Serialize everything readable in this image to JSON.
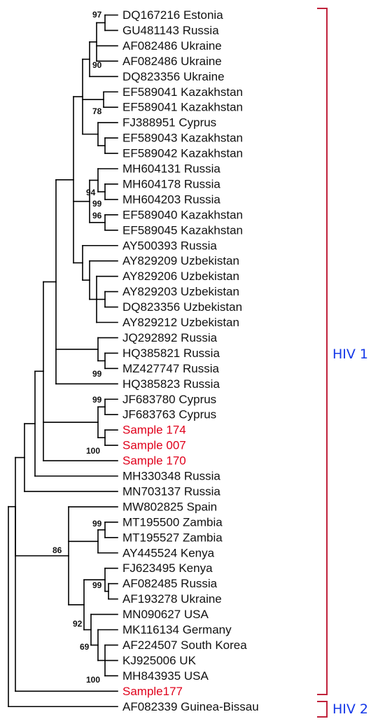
{
  "leaves": [
    {
      "text": "DQ167216 Estonia",
      "color": "#111111"
    },
    {
      "text": "GU481143 Russia",
      "color": "#111111"
    },
    {
      "text": "AF082486 Ukraine",
      "color": "#111111"
    },
    {
      "text": "AF082486 Ukraine",
      "color": "#111111"
    },
    {
      "text": "DQ823356 Ukraine",
      "color": "#111111"
    },
    {
      "text": "EF589041 Kazakhstan",
      "color": "#111111"
    },
    {
      "text": "EF589041 Kazakhstan",
      "color": "#111111"
    },
    {
      "text": "FJ388951 Cyprus",
      "color": "#111111"
    },
    {
      "text": "EF589043 Kazakhstan",
      "color": "#111111"
    },
    {
      "text": "EF589042 Kazakhstan",
      "color": "#111111"
    },
    {
      "text": "MH604131 Russia",
      "color": "#111111"
    },
    {
      "text": "MH604178 Russia",
      "color": "#111111"
    },
    {
      "text": "MH604203 Russia",
      "color": "#111111"
    },
    {
      "text": "EF589040 Kazakhstan",
      "color": "#111111"
    },
    {
      "text": "EF589045 Kazakhstan",
      "color": "#111111"
    },
    {
      "text": "AY500393 Russia",
      "color": "#111111"
    },
    {
      "text": "AY829209 Uzbekistan",
      "color": "#111111"
    },
    {
      "text": "AY829206 Uzbekistan",
      "color": "#111111"
    },
    {
      "text": "AY829203 Uzbekistan",
      "color": "#111111"
    },
    {
      "text": "DQ823356 Uzbekistan",
      "color": "#111111"
    },
    {
      "text": "AY829212 Uzbekistan",
      "color": "#111111"
    },
    {
      "text": "JQ292892 Russia",
      "color": "#111111"
    },
    {
      "text": "HQ385821 Russia",
      "color": "#111111"
    },
    {
      "text": "MZ427747 Russia",
      "color": "#111111"
    },
    {
      "text": "HQ385823 Russia",
      "color": "#111111"
    },
    {
      "text": "JF683780 Cyprus",
      "color": "#111111"
    },
    {
      "text": "JF683763 Cyprus",
      "color": "#111111"
    },
    {
      "text": "Sample 174",
      "color": "#e0001b"
    },
    {
      "text": "Sample 007",
      "color": "#e0001b"
    },
    {
      "text": "Sample 170",
      "color": "#e0001b"
    },
    {
      "text": "MH330348 Russia",
      "color": "#111111"
    },
    {
      "text": "MN703137 Russia",
      "color": "#111111"
    },
    {
      "text": "MW802825 Spain",
      "color": "#111111"
    },
    {
      "text": "MT195500 Zambia",
      "color": "#111111"
    },
    {
      "text": "MT195527 Zambia",
      "color": "#111111"
    },
    {
      "text": "AY445524 Kenya",
      "color": "#111111"
    },
    {
      "text": "FJ623495 Kenya",
      "color": "#111111"
    },
    {
      "text": "AF082485 Russia",
      "color": "#111111"
    },
    {
      "text": "AF193278 Ukraine",
      "color": "#111111"
    },
    {
      "text": "MN090627 USA",
      "color": "#111111"
    },
    {
      "text": "MK116134 Germany",
      "color": "#111111"
    },
    {
      "text": "AF224507 South Korea",
      "color": "#111111"
    },
    {
      "text": "KJ925006 UK",
      "color": "#111111"
    },
    {
      "text": "MH843935 USA",
      "color": "#111111"
    },
    {
      "text": "Sample177",
      "color": "#e0001b"
    },
    {
      "text": "AF082339  Guinea-Bissau",
      "color": "#111111"
    }
  ],
  "bootstrap": [
    "97",
    "90",
    "78",
    "94",
    "99",
    "96",
    "99",
    "99",
    "100",
    "86",
    "99",
    "99",
    "92",
    "69",
    "100"
  ],
  "groups": [
    {
      "label": "HIV 1",
      "color": "#1438e8"
    },
    {
      "label": "HIV 2",
      "color": "#1438e8"
    }
  ],
  "colors": {
    "branch": "#000000",
    "bracket": "#c0223b",
    "sample": "#e0001b"
  }
}
